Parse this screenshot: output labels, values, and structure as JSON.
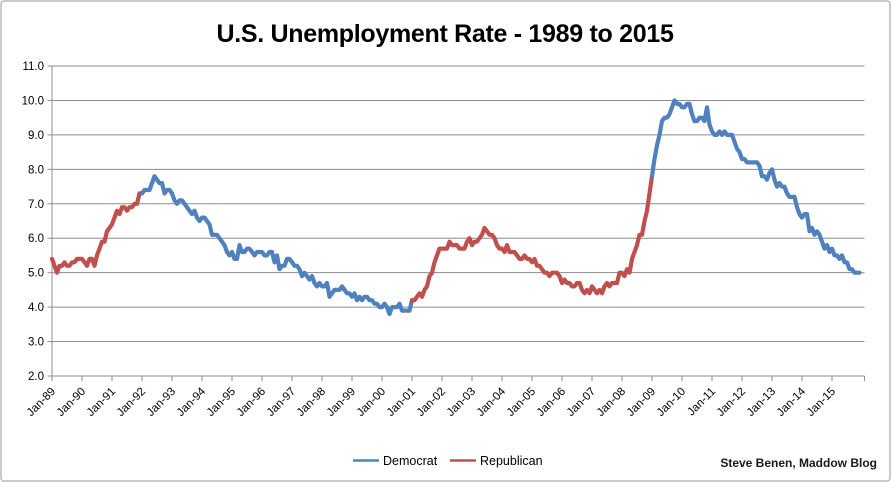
{
  "attribution": "Steve Benen, Maddow Blog",
  "legend": {
    "position": "bottom-center",
    "items": [
      {
        "label": "Democrat",
        "color": "#4F81BD"
      },
      {
        "label": "Republican",
        "color": "#C0504D"
      }
    ]
  },
  "chart_data": {
    "type": "line",
    "title": "U.S. Unemployment Rate - 1989 to 2015",
    "xlabel": "",
    "ylabel": "",
    "unit": "percent",
    "grid": true,
    "ylim": [
      2.0,
      11.0
    ],
    "y_ticks": [
      11.0,
      10.0,
      9.0,
      8.0,
      7.0,
      6.0,
      5.0,
      4.0,
      3.0,
      2.0
    ],
    "x_start": "Jan-1989",
    "x_end": "Dec-2015",
    "x_frequency": "monthly",
    "x_tick_interval_months": 12,
    "x_tick_labels": [
      "Jan-89",
      "Jan-90",
      "Jan-91",
      "Jan-92",
      "Jan-93",
      "Jan-94",
      "Jan-95",
      "Jan-96",
      "Jan-97",
      "Jan-98",
      "Jan-99",
      "Jan-00",
      "Jan-01",
      "Jan-02",
      "Jan-03",
      "Jan-04",
      "Jan-05",
      "Jan-06",
      "Jan-07",
      "Jan-08",
      "Jan-09",
      "Jan-10",
      "Jan-11",
      "Jan-12",
      "Jan-13",
      "Jan-14",
      "Jan-15"
    ],
    "colors": {
      "Democrat": "#4F81BD",
      "Republican": "#C0504D"
    },
    "series": [
      {
        "name": "U.S. unemployment rate (%), monthly Jan-1989 to Dec-2015",
        "values": [
          5.4,
          5.2,
          5.0,
          5.2,
          5.2,
          5.3,
          5.2,
          5.2,
          5.3,
          5.3,
          5.4,
          5.4,
          5.4,
          5.3,
          5.2,
          5.4,
          5.4,
          5.2,
          5.5,
          5.7,
          5.9,
          5.9,
          6.2,
          6.3,
          6.4,
          6.6,
          6.8,
          6.7,
          6.9,
          6.9,
          6.8,
          6.9,
          6.9,
          7.0,
          7.0,
          7.3,
          7.3,
          7.4,
          7.4,
          7.4,
          7.6,
          7.8,
          7.7,
          7.6,
          7.6,
          7.3,
          7.4,
          7.4,
          7.3,
          7.1,
          7.0,
          7.1,
          7.1,
          7.0,
          6.9,
          6.8,
          6.7,
          6.8,
          6.6,
          6.5,
          6.6,
          6.6,
          6.5,
          6.4,
          6.1,
          6.1,
          6.1,
          6.0,
          5.9,
          5.8,
          5.6,
          5.5,
          5.6,
          5.4,
          5.4,
          5.8,
          5.6,
          5.6,
          5.7,
          5.7,
          5.6,
          5.5,
          5.6,
          5.6,
          5.6,
          5.5,
          5.5,
          5.6,
          5.6,
          5.3,
          5.5,
          5.1,
          5.2,
          5.2,
          5.4,
          5.4,
          5.3,
          5.2,
          5.2,
          5.1,
          4.9,
          5.0,
          4.9,
          4.8,
          4.9,
          4.7,
          4.6,
          4.7,
          4.6,
          4.6,
          4.7,
          4.3,
          4.4,
          4.5,
          4.5,
          4.5,
          4.6,
          4.5,
          4.4,
          4.4,
          4.3,
          4.4,
          4.2,
          4.3,
          4.2,
          4.3,
          4.3,
          4.2,
          4.2,
          4.1,
          4.1,
          4.0,
          4.0,
          4.1,
          4.0,
          3.8,
          4.0,
          4.0,
          4.0,
          4.1,
          3.9,
          3.9,
          3.9,
          3.9,
          4.2,
          4.2,
          4.3,
          4.4,
          4.3,
          4.5,
          4.6,
          4.9,
          5.0,
          5.3,
          5.5,
          5.7,
          5.7,
          5.7,
          5.7,
          5.9,
          5.8,
          5.8,
          5.8,
          5.7,
          5.7,
          5.7,
          5.9,
          6.0,
          5.8,
          5.9,
          5.9,
          6.0,
          6.1,
          6.3,
          6.2,
          6.1,
          6.1,
          6.0,
          5.8,
          5.7,
          5.7,
          5.6,
          5.8,
          5.6,
          5.6,
          5.6,
          5.5,
          5.4,
          5.4,
          5.5,
          5.4,
          5.4,
          5.3,
          5.4,
          5.2,
          5.2,
          5.1,
          5.0,
          5.0,
          4.9,
          5.0,
          5.0,
          5.0,
          4.9,
          4.7,
          4.8,
          4.7,
          4.7,
          4.6,
          4.6,
          4.7,
          4.7,
          4.5,
          4.4,
          4.5,
          4.4,
          4.6,
          4.5,
          4.4,
          4.5,
          4.4,
          4.6,
          4.7,
          4.6,
          4.7,
          4.7,
          4.7,
          5.0,
          5.0,
          4.9,
          5.1,
          5.0,
          5.4,
          5.6,
          5.8,
          6.1,
          6.1,
          6.5,
          6.8,
          7.3,
          7.8,
          8.3,
          8.7,
          9.0,
          9.4,
          9.5,
          9.5,
          9.6,
          9.8,
          10.0,
          9.9,
          9.9,
          9.8,
          9.8,
          9.9,
          9.9,
          9.6,
          9.4,
          9.4,
          9.5,
          9.5,
          9.4,
          9.8,
          9.3,
          9.1,
          9.0,
          9.0,
          9.1,
          9.0,
          9.1,
          9.0,
          9.0,
          9.0,
          8.8,
          8.6,
          8.5,
          8.3,
          8.3,
          8.2,
          8.2,
          8.2,
          8.2,
          8.2,
          8.1,
          7.8,
          7.8,
          7.7,
          7.9,
          8.0,
          7.7,
          7.5,
          7.6,
          7.5,
          7.5,
          7.3,
          7.2,
          7.2,
          7.2,
          6.9,
          6.7,
          6.6,
          6.7,
          6.7,
          6.2,
          6.3,
          6.1,
          6.2,
          6.1,
          5.9,
          5.7,
          5.8,
          5.6,
          5.7,
          5.5,
          5.5,
          5.4,
          5.5,
          5.3,
          5.3,
          5.1,
          5.1,
          5.0,
          5.0,
          5.0
        ]
      }
    ],
    "party_segments": [
      {
        "party": "Republican",
        "from_index": 0,
        "to_index": 36
      },
      {
        "party": "Democrat",
        "from_index": 36,
        "to_index": 144
      },
      {
        "party": "Republican",
        "from_index": 144,
        "to_index": 240
      },
      {
        "party": "Democrat",
        "from_index": 240,
        "to_index": 323
      }
    ]
  }
}
